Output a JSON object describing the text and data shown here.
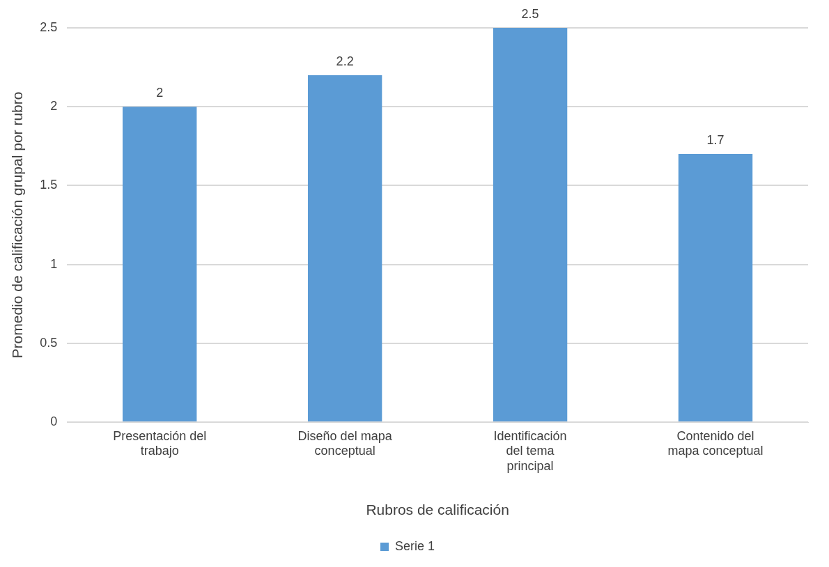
{
  "chart_data": {
    "type": "bar",
    "categories": [
      "Presentación del trabajo",
      "Diseño del mapa conceptual",
      "Identificación del tema principal",
      "Contenido del mapa conceptual"
    ],
    "series": [
      {
        "name": "Serie 1",
        "color": "#5b9bd5",
        "values": [
          2,
          2.2,
          2.5,
          1.7
        ]
      }
    ],
    "xlabel": "Rubros de calificación",
    "ylabel": "Promedio de calificación grupal por rubro",
    "ylim": [
      0,
      2.5
    ],
    "yticks": [
      0,
      0.5,
      1,
      1.5,
      2,
      2.5
    ],
    "grid": "y",
    "legend": "bottom",
    "data_labels": true
  }
}
